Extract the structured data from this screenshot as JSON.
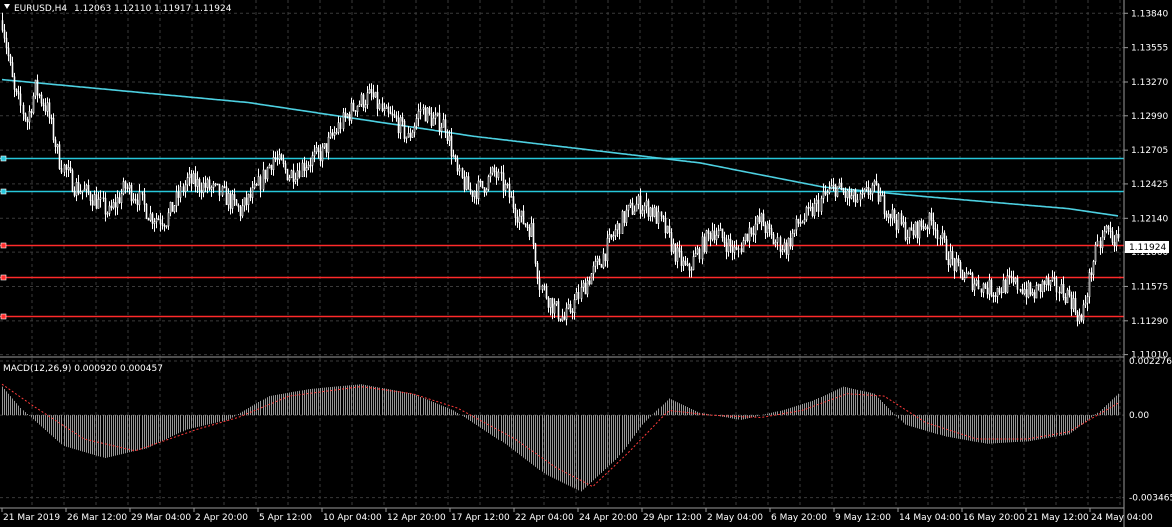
{
  "header": {
    "symbol": "EURUSD,H4",
    "ohlc": "1.12063 1.12110 1.11917 1.11924",
    "triangle_icon": "dropdown-triangle-icon"
  },
  "macd": {
    "label": "MACD(12,26,9) 0.000920 0.000457",
    "y_ticks": [
      "0.002276",
      "0.00",
      "-0.003465"
    ]
  },
  "price_axis": {
    "ticks": [
      "1.13840",
      "1.13555",
      "1.13270",
      "1.12990",
      "1.12705",
      "1.12425",
      "1.12140",
      "1.11860",
      "1.11575",
      "1.11290",
      "1.11010"
    ],
    "current_price": "1.11924"
  },
  "time_axis": {
    "ticks": [
      "21 Mar 2019",
      "26 Mar 12:00",
      "29 Mar 04:00",
      "2 Apr 20:00",
      "5 Apr 12:00",
      "10 Apr 04:00",
      "12 Apr 20:00",
      "17 Apr 12:00",
      "22 Apr 04:00",
      "24 Apr 20:00",
      "29 Apr 12:00",
      "2 May 04:00",
      "6 May 20:00",
      "9 May 12:00",
      "14 May 04:00",
      "16 May 20:00",
      "21 May 12:00",
      "24 May 04:00"
    ]
  },
  "levels": {
    "cyan_prices": [
      1.1264,
      1.1237
    ],
    "red_prices": [
      1.1192,
      1.1165,
      1.1133
    ]
  },
  "colors": {
    "background": "#000000",
    "grid": "#3a3a3a",
    "candle": "#ffffff",
    "moving_average": "#4dd0e1",
    "cyan_level": "#26c6da",
    "red_level": "#ff2a2a",
    "macd_hist": "#bfbfbf",
    "macd_signal": "#ff3b3b"
  },
  "chart_data": {
    "type": "candlestick",
    "title": "EURUSD,H4",
    "ylim": [
      1.1099,
      1.1395
    ],
    "anchors": [
      [
        0,
        1.1378
      ],
      [
        6,
        1.1318
      ],
      [
        12,
        1.1295
      ],
      [
        16,
        1.1322
      ],
      [
        22,
        1.1304
      ],
      [
        28,
        1.1262
      ],
      [
        35,
        1.1241
      ],
      [
        44,
        1.1232
      ],
      [
        52,
        1.1218
      ],
      [
        60,
        1.124
      ],
      [
        66,
        1.1232
      ],
      [
        72,
        1.1216
      ],
      [
        80,
        1.1213
      ],
      [
        90,
        1.1245
      ],
      [
        100,
        1.124
      ],
      [
        108,
        1.1233
      ],
      [
        116,
        1.122
      ],
      [
        124,
        1.1238
      ],
      [
        132,
        1.1265
      ],
      [
        140,
        1.125
      ],
      [
        148,
        1.126
      ],
      [
        156,
        1.1268
      ],
      [
        164,
        1.129
      ],
      [
        172,
        1.1308
      ],
      [
        180,
        1.1316
      ],
      [
        186,
        1.13
      ],
      [
        192,
        1.1295
      ],
      [
        198,
        1.128
      ],
      [
        204,
        1.1305
      ],
      [
        210,
        1.1295
      ],
      [
        216,
        1.1292
      ],
      [
        222,
        1.125
      ],
      [
        228,
        1.1236
      ],
      [
        234,
        1.124
      ],
      [
        240,
        1.1252
      ],
      [
        246,
        1.1236
      ],
      [
        252,
        1.1215
      ],
      [
        258,
        1.1205
      ],
      [
        262,
        1.116
      ],
      [
        268,
        1.1142
      ],
      [
        274,
        1.113
      ],
      [
        280,
        1.1147
      ],
      [
        286,
        1.1165
      ],
      [
        292,
        1.118
      ],
      [
        298,
        1.12
      ],
      [
        304,
        1.1218
      ],
      [
        310,
        1.1226
      ],
      [
        316,
        1.1222
      ],
      [
        322,
        1.1208
      ],
      [
        328,
        1.1185
      ],
      [
        334,
        1.117
      ],
      [
        340,
        1.1188
      ],
      [
        346,
        1.1205
      ],
      [
        352,
        1.1196
      ],
      [
        358,
        1.1185
      ],
      [
        364,
        1.1205
      ],
      [
        370,
        1.1212
      ],
      [
        376,
        1.1195
      ],
      [
        382,
        1.119
      ],
      [
        388,
        1.121
      ],
      [
        394,
        1.1218
      ],
      [
        400,
        1.1231
      ],
      [
        406,
        1.124
      ],
      [
        412,
        1.1232
      ],
      [
        418,
        1.1228
      ],
      [
        424,
        1.124
      ],
      [
        430,
        1.1225
      ],
      [
        436,
        1.1212
      ],
      [
        442,
        1.12
      ],
      [
        448,
        1.1208
      ],
      [
        454,
        1.1212
      ],
      [
        460,
        1.1186
      ],
      [
        466,
        1.117
      ],
      [
        472,
        1.1163
      ],
      [
        478,
        1.1158
      ],
      [
        484,
        1.1154
      ],
      [
        490,
        1.116
      ],
      [
        496,
        1.1158
      ],
      [
        502,
        1.115
      ],
      [
        508,
        1.116
      ],
      [
        514,
        1.1156
      ],
      [
        520,
        1.115
      ],
      [
        526,
        1.1128
      ],
      [
        532,
        1.118
      ],
      [
        538,
        1.1205
      ],
      [
        544,
        1.1192
      ]
    ],
    "ma_points": [
      [
        0,
        1.1329
      ],
      [
        120,
        1.131
      ],
      [
        230,
        1.1282
      ],
      [
        280,
        1.1272
      ],
      [
        340,
        1.126
      ],
      [
        400,
        1.124
      ],
      [
        450,
        1.1232
      ],
      [
        520,
        1.1222
      ],
      [
        544,
        1.1216
      ]
    ],
    "macd": {
      "ylim": [
        -0.0039,
        0.0024
      ],
      "hist_anchors": [
        [
          0,
          0.0012
        ],
        [
          10,
          0.0002
        ],
        [
          30,
          -0.0013
        ],
        [
          50,
          -0.0018
        ],
        [
          70,
          -0.0014
        ],
        [
          90,
          -0.0006
        ],
        [
          110,
          -0.0002
        ],
        [
          130,
          0.0008
        ],
        [
          150,
          0.0011
        ],
        [
          175,
          0.0013
        ],
        [
          200,
          0.0009
        ],
        [
          220,
          0.0002
        ],
        [
          245,
          -0.0012
        ],
        [
          265,
          -0.0025
        ],
        [
          282,
          -0.0032
        ],
        [
          300,
          -0.0018
        ],
        [
          312,
          -0.0004
        ],
        [
          325,
          0.0007
        ],
        [
          340,
          0.0001
        ],
        [
          360,
          -0.0002
        ],
        [
          380,
          0.0002
        ],
        [
          395,
          0.0006
        ],
        [
          410,
          0.0012
        ],
        [
          425,
          0.0009
        ],
        [
          440,
          -0.0004
        ],
        [
          460,
          -0.0009
        ],
        [
          480,
          -0.0012
        ],
        [
          500,
          -0.0011
        ],
        [
          520,
          -0.0008
        ],
        [
          534,
          0.0001
        ],
        [
          544,
          0.0009
        ]
      ],
      "signal_anchors": [
        [
          0,
          0.0013
        ],
        [
          15,
          0.0004
        ],
        [
          40,
          -0.001
        ],
        [
          65,
          -0.0015
        ],
        [
          95,
          -0.0006
        ],
        [
          115,
          -0.0001
        ],
        [
          140,
          0.0008
        ],
        [
          175,
          0.0012
        ],
        [
          200,
          0.0009
        ],
        [
          222,
          0.0003
        ],
        [
          250,
          -0.001
        ],
        [
          270,
          -0.0022
        ],
        [
          288,
          -0.003
        ],
        [
          305,
          -0.0016
        ],
        [
          325,
          0.0002
        ],
        [
          345,
          0.0
        ],
        [
          370,
          -0.0001
        ],
        [
          390,
          0.0002
        ],
        [
          412,
          0.0009
        ],
        [
          430,
          0.0008
        ],
        [
          450,
          -0.0003
        ],
        [
          475,
          -0.001
        ],
        [
          500,
          -0.001
        ],
        [
          520,
          -0.0007
        ],
        [
          544,
          0.0005
        ]
      ]
    }
  }
}
